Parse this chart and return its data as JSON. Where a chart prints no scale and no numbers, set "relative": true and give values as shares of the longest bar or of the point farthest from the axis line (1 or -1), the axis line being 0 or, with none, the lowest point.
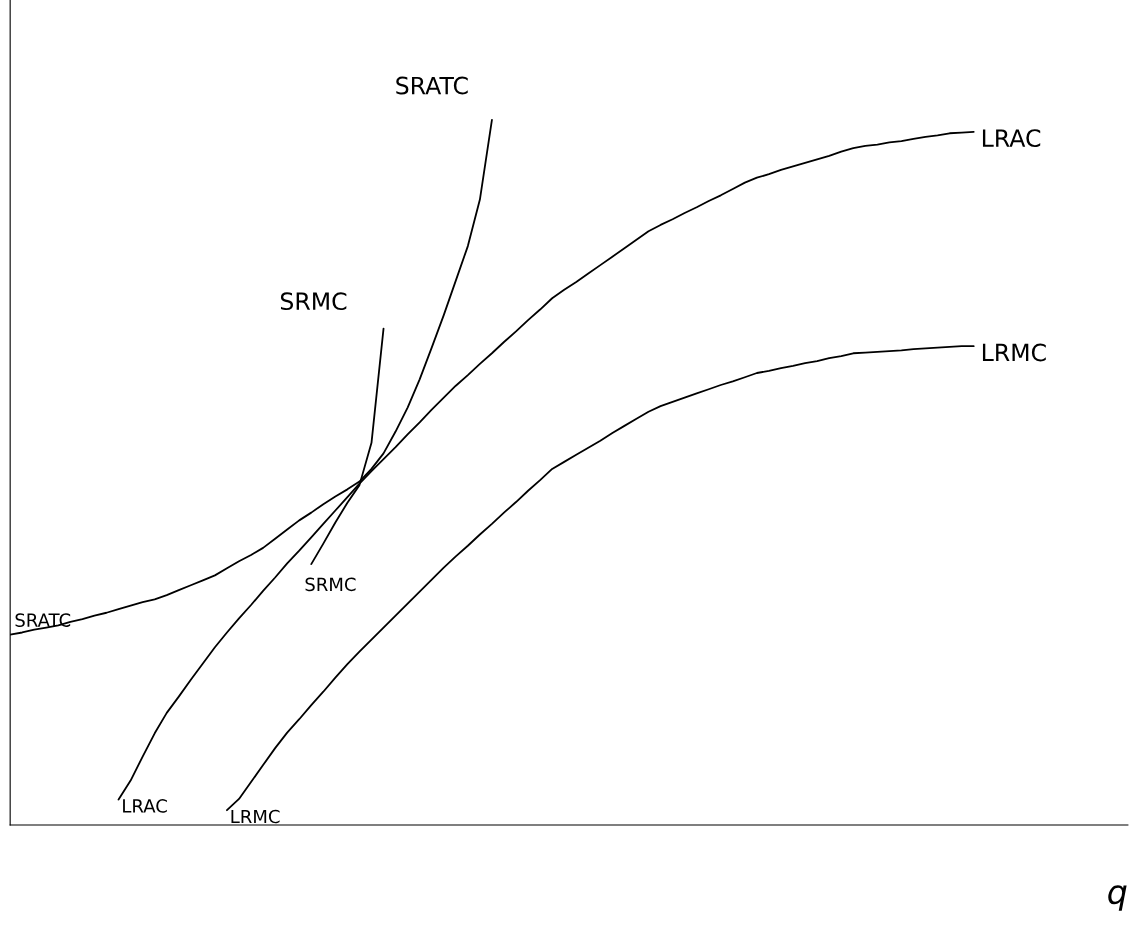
{
  "chart_data": {
    "type": "line",
    "relative": true,
    "xlabel": "q",
    "legend": false,
    "marker": "none",
    "line_style": "solid",
    "categories": [
      null,
      null,
      null,
      null,
      null,
      null,
      null,
      null,
      null,
      null,
      null,
      null,
      null,
      null,
      null,
      null,
      null,
      null,
      null,
      null,
      null,
      null,
      null,
      null,
      null,
      null,
      null,
      null,
      null,
      null,
      null,
      null,
      null,
      null,
      null,
      null,
      null,
      null,
      null,
      null,
      null,
      null,
      null,
      null,
      null,
      null,
      null,
      null,
      null,
      null,
      null,
      null,
      null,
      null,
      null,
      null,
      null,
      null,
      null,
      null,
      null,
      null,
      null,
      null,
      null,
      null,
      null,
      null,
      null,
      null,
      null,
      null,
      null,
      null,
      null,
      null,
      null,
      null,
      null,
      null,
      null
    ],
    "series": [
      {
        "name": "SRATC",
        "color": "#000000",
        "values": [
          0.27,
          0.273,
          0.277,
          0.28,
          0.283,
          0.288,
          0.292,
          0.297,
          0.301,
          0.306,
          0.311,
          0.316,
          0.32,
          0.326,
          0.333,
          0.34,
          0.347,
          0.354,
          0.364,
          0.374,
          0.383,
          0.393,
          0.406,
          0.419,
          0.432,
          0.443,
          0.455,
          0.466,
          0.476,
          0.487,
          0.505,
          0.527,
          0.558,
          0.592,
          0.632,
          0.677,
          0.723,
          0.772,
          0.821,
          0.887,
          1.0,
          null,
          null,
          null,
          null,
          null,
          null,
          null,
          null,
          null,
          null,
          null,
          null,
          null,
          null,
          null,
          null,
          null,
          null,
          null,
          null,
          null,
          null,
          null,
          null,
          null,
          null,
          null,
          null,
          null,
          null,
          null,
          null,
          null,
          null,
          null,
          null,
          null,
          null,
          null,
          null
        ]
      },
      {
        "name": "SRMC",
        "color": "#000000",
        "values": [
          null,
          null,
          null,
          null,
          null,
          null,
          null,
          null,
          null,
          null,
          null,
          null,
          null,
          null,
          null,
          null,
          null,
          null,
          null,
          null,
          null,
          null,
          null,
          null,
          null,
          0.37,
          0.399,
          0.429,
          0.457,
          0.482,
          0.542,
          0.704,
          null,
          null,
          null,
          null,
          null,
          null,
          null,
          null,
          null,
          null,
          null,
          null,
          null,
          null,
          null,
          null,
          null,
          null,
          null,
          null,
          null,
          null,
          null,
          null,
          null,
          null,
          null,
          null,
          null,
          null,
          null,
          null,
          null,
          null,
          null,
          null,
          null,
          null,
          null,
          null,
          null,
          null,
          null,
          null,
          null,
          null,
          null,
          null,
          null
        ]
      },
      {
        "name": "LRAC",
        "color": "#000000",
        "values": [
          null,
          null,
          null,
          null,
          null,
          null,
          null,
          null,
          null,
          0.036,
          0.063,
          0.097,
          0.13,
          0.159,
          0.182,
          0.206,
          0.229,
          0.252,
          0.273,
          0.293,
          0.312,
          0.332,
          0.351,
          0.371,
          0.389,
          0.408,
          0.427,
          0.446,
          0.465,
          0.484,
          0.502,
          0.519,
          0.536,
          0.554,
          0.571,
          0.589,
          0.606,
          0.623,
          0.638,
          0.654,
          0.669,
          0.685,
          0.7,
          0.716,
          0.731,
          0.747,
          0.759,
          0.77,
          0.782,
          0.794,
          0.806,
          0.818,
          0.83,
          0.842,
          0.851,
          0.859,
          0.868,
          0.876,
          0.885,
          0.893,
          0.902,
          0.911,
          0.918,
          0.923,
          0.929,
          0.934,
          0.939,
          0.944,
          0.949,
          0.955,
          0.96,
          0.963,
          0.965,
          0.968,
          0.97,
          0.973,
          0.976,
          0.978,
          0.981,
          0.982,
          0.983
        ]
      },
      {
        "name": "LRMC",
        "color": "#000000",
        "values": [
          null,
          null,
          null,
          null,
          null,
          null,
          null,
          null,
          null,
          null,
          null,
          null,
          null,
          null,
          null,
          null,
          null,
          null,
          0.021,
          0.037,
          0.061,
          0.085,
          0.109,
          0.131,
          0.15,
          0.17,
          0.189,
          0.209,
          0.228,
          0.246,
          0.263,
          0.28,
          0.297,
          0.314,
          0.331,
          0.348,
          0.365,
          0.381,
          0.396,
          0.412,
          0.427,
          0.443,
          0.458,
          0.474,
          0.489,
          0.505,
          0.515,
          0.525,
          0.535,
          0.545,
          0.556,
          0.566,
          0.576,
          0.586,
          0.594,
          0.6,
          0.606,
          0.612,
          0.618,
          0.624,
          0.629,
          0.635,
          0.641,
          0.644,
          0.648,
          0.651,
          0.655,
          0.658,
          0.662,
          0.665,
          0.669,
          0.67,
          0.671,
          0.672,
          0.673,
          0.675,
          0.676,
          0.677,
          0.678,
          0.679,
          0.679
        ]
      }
    ],
    "annotations": [
      "SRATC",
      "SRMC",
      "LRAC",
      "LRMC"
    ]
  }
}
